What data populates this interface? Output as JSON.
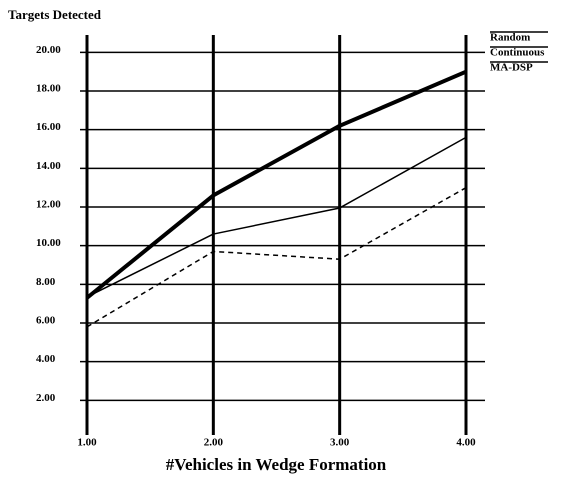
{
  "chart_data": {
    "type": "line",
    "ylabel": "Targets Detected",
    "xlabel": "#Vehicles in Wedge Formation",
    "x": [
      1,
      2,
      3,
      4
    ],
    "series": [
      {
        "name": "Random",
        "color": "#000000",
        "line_width": 1.5,
        "dashed": true,
        "values": [
          5.8,
          9.7,
          9.3,
          13.0
        ]
      },
      {
        "name": "Continuous",
        "color": "#000000",
        "line_width": 1.5,
        "dashed": false,
        "values": [
          7.35,
          10.6,
          11.95,
          15.6
        ]
      },
      {
        "name": "MA-DSP",
        "color": "#000000",
        "line_width": 4,
        "dashed": false,
        "values": [
          7.3,
          12.6,
          16.2,
          19.0
        ]
      }
    ],
    "xlim": [
      1,
      4
    ],
    "ylim": [
      0,
      21
    ],
    "xticks": [
      {
        "value": 1,
        "label": "1.00"
      },
      {
        "value": 2,
        "label": "2.00"
      },
      {
        "value": 3,
        "label": "3.00"
      },
      {
        "value": 4,
        "label": "4.00"
      }
    ],
    "yticks": [
      {
        "value": 2,
        "label": "2.00"
      },
      {
        "value": 4,
        "label": "4.00"
      },
      {
        "value": 6,
        "label": "6.00"
      },
      {
        "value": 8,
        "label": "8.00"
      },
      {
        "value": 10,
        "label": "10.00"
      },
      {
        "value": 12,
        "label": "12.00"
      },
      {
        "value": 14,
        "label": "14.00"
      },
      {
        "value": 16,
        "label": "16.00"
      },
      {
        "value": 18,
        "label": "18.00"
      },
      {
        "value": 20,
        "label": "20.00"
      }
    ],
    "grid": true,
    "legend": "top-right"
  }
}
